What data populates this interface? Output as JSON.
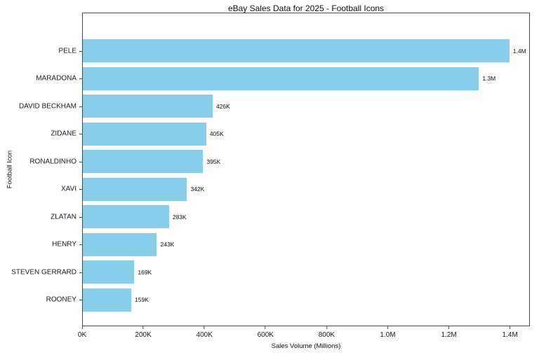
{
  "chart_data": {
    "type": "bar",
    "orientation": "horizontal",
    "title": "eBay Sales Data for 2025 - Football Icons",
    "xlabel": "Sales Volume (Millions)",
    "ylabel": "Football Icon",
    "categories": [
      "PELE",
      "MARADONA",
      "DAVID BECKHAM",
      "ZIDANE",
      "RONALDINHO",
      "XAVI",
      "ZLATAN",
      "HENRY",
      "STEVEN GERRARD",
      "ROONEY"
    ],
    "values": [
      1400000,
      1300000,
      426000,
      405000,
      395000,
      342000,
      283000,
      243000,
      169000,
      159000
    ],
    "value_labels": [
      "1.4M",
      "1.3M",
      "426K",
      "405K",
      "395K",
      "342K",
      "283K",
      "243K",
      "169K",
      "159K"
    ],
    "x_ticks": [
      {
        "value": 0,
        "label": "0K"
      },
      {
        "value": 200000,
        "label": "200K"
      },
      {
        "value": 400000,
        "label": "400K"
      },
      {
        "value": 600000,
        "label": "600K"
      },
      {
        "value": 800000,
        "label": "800K"
      },
      {
        "value": 1000000,
        "label": "1.0M"
      },
      {
        "value": 1200000,
        "label": "1.2M"
      },
      {
        "value": 1400000,
        "label": "1.4M"
      }
    ],
    "xlim": [
      0,
      1465000
    ],
    "bar_color": "#87CEEB",
    "grid": false,
    "legend_position": "none",
    "background_color": "#ffffff"
  }
}
